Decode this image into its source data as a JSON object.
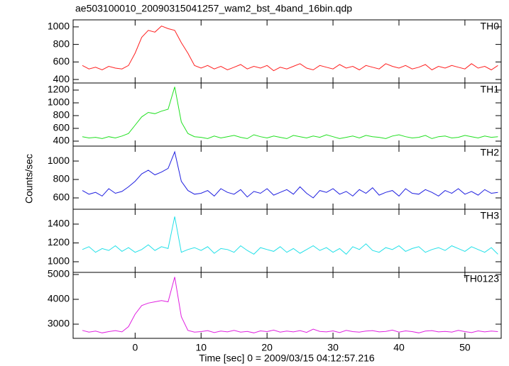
{
  "chart_data": {
    "type": "line",
    "title": "ae503100010_20090315041257_wam2_bst_4band_16bin.qdp",
    "xlabel": "Time [sec] 0 = 2009/03/15 04:12:57.216",
    "ylabel": "Counts/sec",
    "xlim": [
      -9.4,
      55.5
    ],
    "xticks": [
      0,
      10,
      20,
      30,
      40,
      50
    ],
    "x": [
      -8,
      -7,
      -6,
      -5,
      -4,
      -3,
      -2,
      -1,
      0,
      1,
      2,
      3,
      4,
      5,
      6,
      7,
      8,
      9,
      10,
      11,
      12,
      13,
      14,
      15,
      16,
      17,
      18,
      19,
      20,
      21,
      22,
      23,
      24,
      25,
      26,
      27,
      28,
      29,
      30,
      31,
      32,
      33,
      34,
      35,
      36,
      37,
      38,
      39,
      40,
      41,
      42,
      43,
      44,
      45,
      46,
      47,
      48,
      49,
      50,
      51,
      52,
      53,
      54,
      55
    ],
    "series": [
      {
        "name": "TH0",
        "color": "#ff2020",
        "ylim": [
          360,
          1080
        ],
        "yticks": [
          400,
          600,
          800,
          1000
        ],
        "values": [
          560,
          520,
          540,
          510,
          550,
          530,
          520,
          560,
          700,
          880,
          960,
          940,
          1010,
          980,
          960,
          820,
          700,
          560,
          530,
          560,
          520,
          550,
          510,
          540,
          570,
          520,
          550,
          530,
          560,
          500,
          540,
          520,
          550,
          580,
          530,
          510,
          560,
          540,
          520,
          570,
          530,
          550,
          510,
          560,
          540,
          520,
          580,
          550,
          530,
          560,
          520,
          540,
          570,
          510,
          550,
          530,
          560,
          540,
          520,
          580,
          530,
          550,
          510,
          560
        ]
      },
      {
        "name": "TH1",
        "color": "#20e020",
        "ylim": [
          322,
          1311
        ],
        "yticks": [
          400,
          600,
          800,
          1000,
          1200
        ],
        "values": [
          470,
          450,
          460,
          440,
          470,
          450,
          480,
          520,
          650,
          780,
          850,
          830,
          870,
          900,
          1250,
          700,
          520,
          470,
          460,
          440,
          480,
          450,
          470,
          490,
          460,
          440,
          500,
          470,
          450,
          480,
          460,
          440,
          490,
          470,
          450,
          480,
          460,
          500,
          470,
          440,
          460,
          480,
          450,
          490,
          470,
          460,
          440,
          480,
          500,
          470,
          450,
          460,
          490,
          440,
          470,
          480,
          450,
          460,
          490,
          470,
          450,
          480,
          460,
          470
        ]
      },
      {
        "name": "TH2",
        "color": "#2020e0",
        "ylim": [
          477,
          1162
        ],
        "yticks": [
          600,
          800,
          1000
        ],
        "values": [
          680,
          640,
          660,
          620,
          700,
          650,
          670,
          720,
          780,
          860,
          900,
          850,
          880,
          920,
          1100,
          780,
          680,
          640,
          650,
          680,
          620,
          700,
          660,
          640,
          690,
          610,
          670,
          650,
          700,
          630,
          660,
          690,
          640,
          720,
          650,
          600,
          680,
          660,
          700,
          640,
          670,
          620,
          690,
          650,
          710,
          630,
          660,
          680,
          620,
          700,
          650,
          640,
          690,
          660,
          620,
          680,
          650,
          700,
          640,
          670,
          630,
          690,
          650,
          660
        ]
      },
      {
        "name": "TH3",
        "color": "#20e0e8",
        "ylim": [
          887,
          1558
        ],
        "yticks": [
          1000,
          1200,
          1400
        ],
        "values": [
          1130,
          1160,
          1100,
          1140,
          1120,
          1170,
          1110,
          1150,
          1100,
          1130,
          1180,
          1120,
          1160,
          1140,
          1480,
          1100,
          1130,
          1150,
          1120,
          1160,
          1090,
          1140,
          1130,
          1100,
          1170,
          1120,
          1080,
          1150,
          1130,
          1110,
          1160,
          1100,
          1140,
          1090,
          1130,
          1170,
          1120,
          1150,
          1100,
          1140,
          1080,
          1160,
          1130,
          1190,
          1120,
          1100,
          1150,
          1130,
          1170,
          1110,
          1140,
          1160,
          1100,
          1130,
          1150,
          1120,
          1170,
          1140,
          1110,
          1160,
          1130,
          1100,
          1150,
          1080
        ]
      },
      {
        "name": "TH0123",
        "color": "#e020e0",
        "ylim": [
          2429,
          5086
        ],
        "yticks": [
          3000,
          4000,
          5000
        ],
        "values": [
          2750,
          2680,
          2720,
          2650,
          2700,
          2740,
          2690,
          2900,
          3400,
          3750,
          3850,
          3900,
          3950,
          3900,
          4900,
          3300,
          2750,
          2680,
          2700,
          2740,
          2660,
          2720,
          2690,
          2750,
          2680,
          2710,
          2650,
          2730,
          2700,
          2760,
          2680,
          2720,
          2690,
          2740,
          2670,
          2800,
          2710,
          2690,
          2730,
          2660,
          2750,
          2700,
          2680,
          2720,
          2740,
          2690,
          2710,
          2760,
          2680,
          2730,
          2700,
          2650,
          2720,
          2740,
          2690,
          2710,
          2680,
          2750,
          2700,
          2660,
          2730,
          2690,
          2720,
          2700
        ]
      }
    ]
  }
}
